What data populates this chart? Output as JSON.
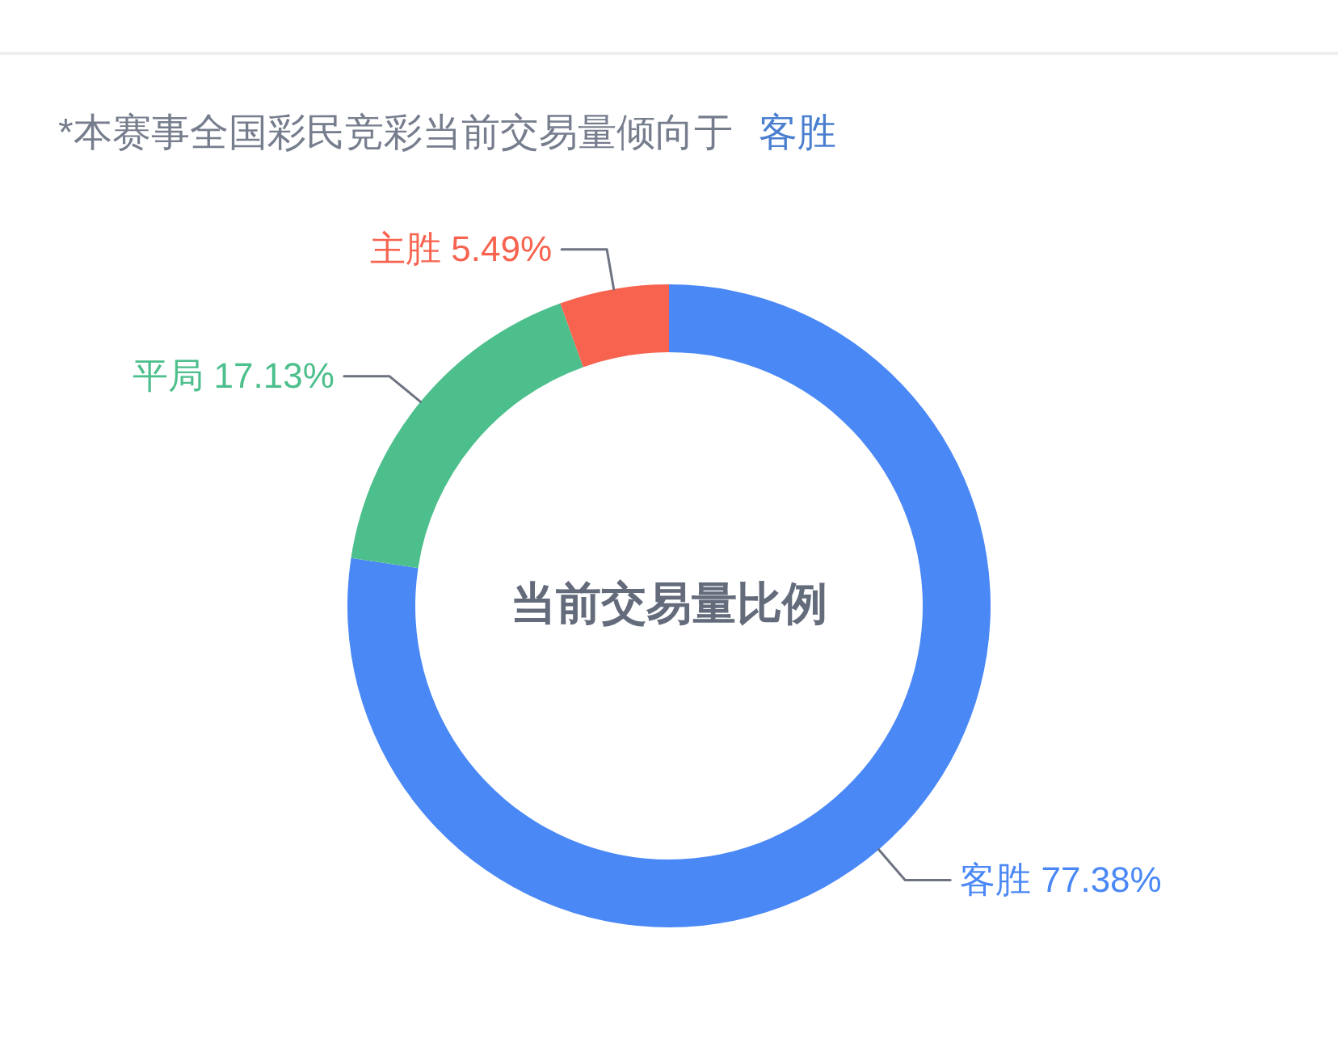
{
  "chart_data": {
    "type": "donut",
    "title": "*本赛事全国彩民竞彩当前交易量倾向于",
    "subtitle": "客胜",
    "categories": [
      "客胜",
      "平局",
      "主胜"
    ],
    "values": [
      77.38,
      17.13,
      5.49
    ],
    "colors": [
      "#4a88f6",
      "#4cbf8c",
      "#f7634f"
    ],
    "value_labels": [
      "77.38%",
      "17.13%",
      "5.49%"
    ],
    "annotations": [
      "当前交易量比例"
    ]
  }
}
